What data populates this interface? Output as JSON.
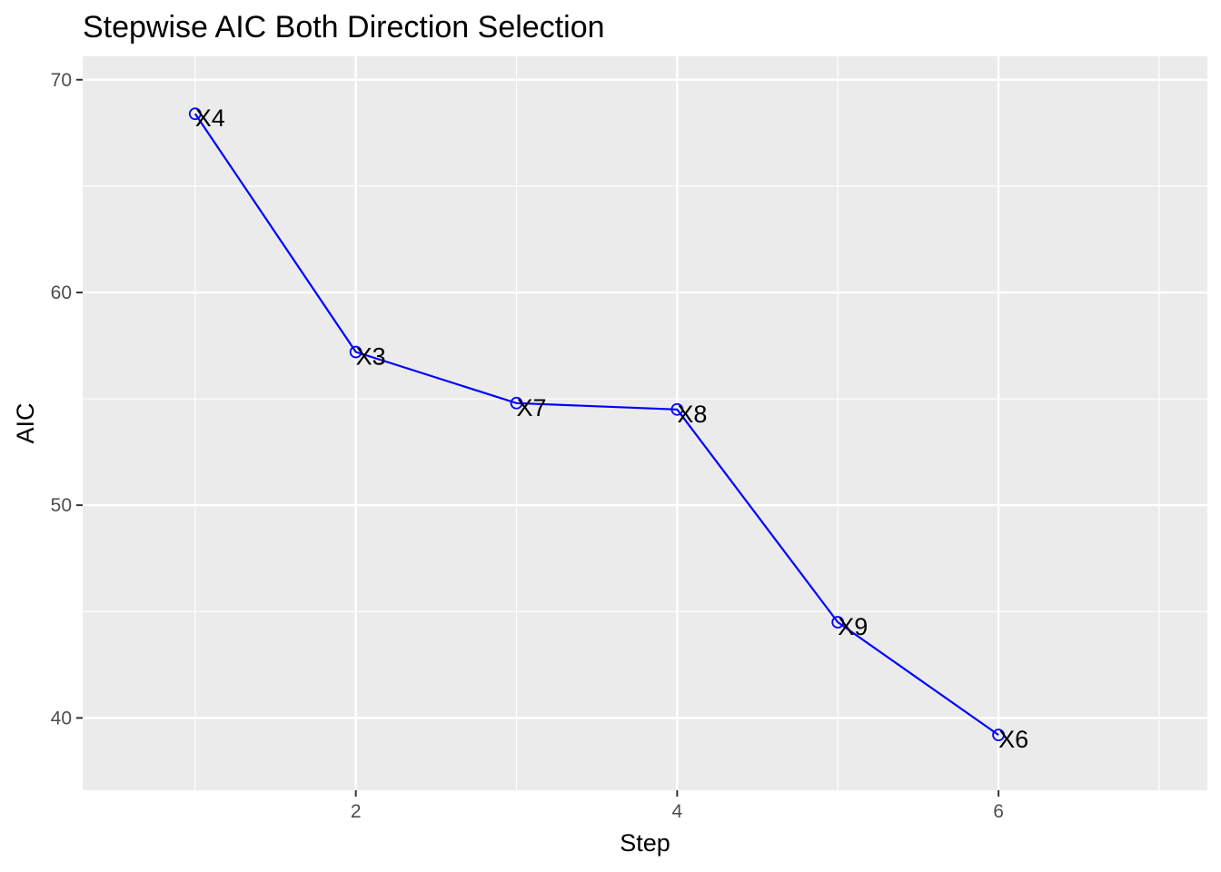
{
  "chart_data": {
    "type": "line",
    "title": "Stepwise AIC Both Direction Selection",
    "xlabel": "Step",
    "ylabel": "AIC",
    "xlim": [
      0.3,
      7.3
    ],
    "ylim": [
      36.6,
      71.1
    ],
    "x_ticks": [
      2,
      4,
      6
    ],
    "x_minor_ticks": [
      1,
      3,
      5,
      7
    ],
    "y_ticks": [
      40,
      50,
      60,
      70
    ],
    "y_minor_ticks": [
      45,
      55,
      65
    ],
    "grid": true,
    "legend": "none",
    "colors": {
      "panel_background": "#ebebeb",
      "grid": "#ffffff",
      "series": "#0000ff",
      "point_labels": "#000000"
    },
    "series": [
      {
        "x": [
          1,
          2,
          3,
          4,
          5,
          6
        ],
        "y": [
          68.4,
          57.2,
          54.8,
          54.5,
          44.5,
          39.2
        ],
        "labels": [
          "X4",
          "X3",
          "X7",
          "X8",
          "X9",
          "X6"
        ]
      }
    ]
  }
}
